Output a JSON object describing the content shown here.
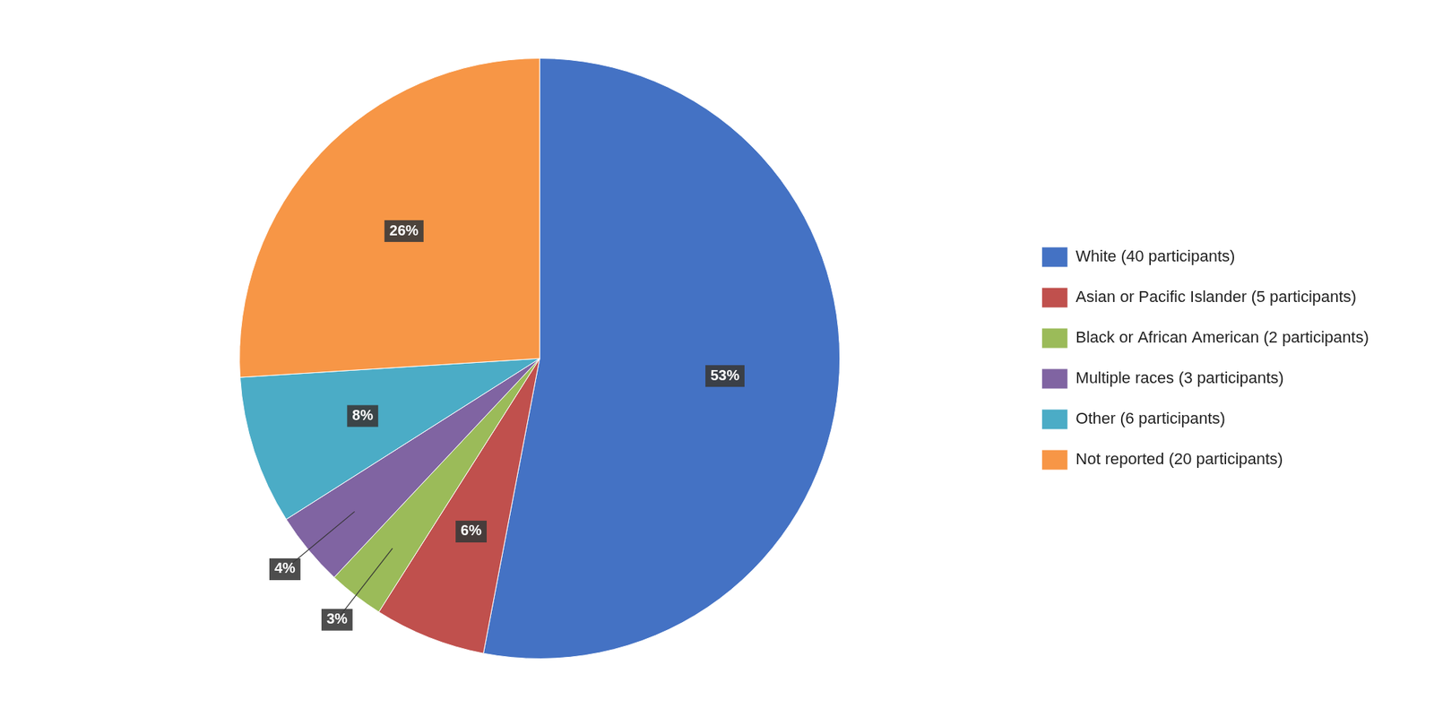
{
  "chart_data": {
    "type": "pie",
    "categories": [
      "White (40 participants)",
      "Asian or Pacific Islander (5 participants)",
      "Black or African American (2 participants)",
      "Multiple races (3 participants)",
      "Other (6 participants)",
      "Not reported (20 participants)"
    ],
    "values": [
      53,
      6,
      3,
      4,
      8,
      26
    ],
    "value_labels": [
      "53%",
      "6%",
      "3%",
      "4%",
      "8%",
      "26%"
    ],
    "colors": [
      "#4472C4",
      "#C0504D",
      "#9BBB59",
      "#8064A2",
      "#4BACC6",
      "#F79646"
    ],
    "data_labels": true,
    "legend": "right"
  }
}
